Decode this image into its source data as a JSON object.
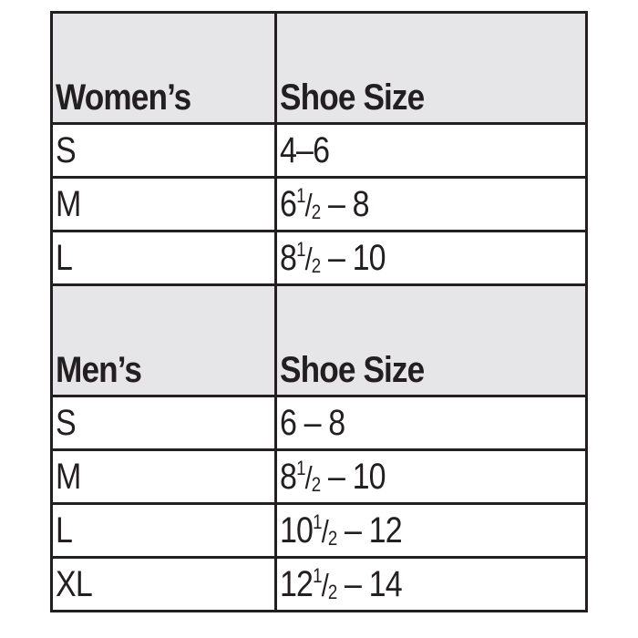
{
  "sections": [
    {
      "header": {
        "group": "Women’s",
        "size_label": "Shoe Size"
      },
      "rows": [
        {
          "size": "S",
          "shoe": {
            "whole": "4–6",
            "num": "",
            "den": "",
            "rest": ""
          }
        },
        {
          "size": "M",
          "shoe": {
            "whole": "6",
            "num": "1",
            "den": "2",
            "rest": " – 8"
          }
        },
        {
          "size": "L",
          "shoe": {
            "whole": "8",
            "num": "1",
            "den": "2",
            "rest": " – 10"
          }
        }
      ]
    },
    {
      "header": {
        "group": "Men’s",
        "size_label": "Shoe Size"
      },
      "rows": [
        {
          "size": "S",
          "shoe": {
            "whole": "6 – 8",
            "num": "",
            "den": "",
            "rest": ""
          }
        },
        {
          "size": "M",
          "shoe": {
            "whole": "8",
            "num": "1",
            "den": "2",
            "rest": " – 10"
          }
        },
        {
          "size": "L",
          "shoe": {
            "whole": "10",
            "num": "1",
            "den": "2",
            "rest": " – 12"
          }
        },
        {
          "size": "XL",
          "shoe": {
            "whole": "12",
            "num": "1",
            "den": "2",
            "rest": " – 14"
          }
        }
      ]
    }
  ],
  "colors": {
    "header_bg": "#e6e6e8",
    "border": "#231f20",
    "text": "#231f20"
  }
}
